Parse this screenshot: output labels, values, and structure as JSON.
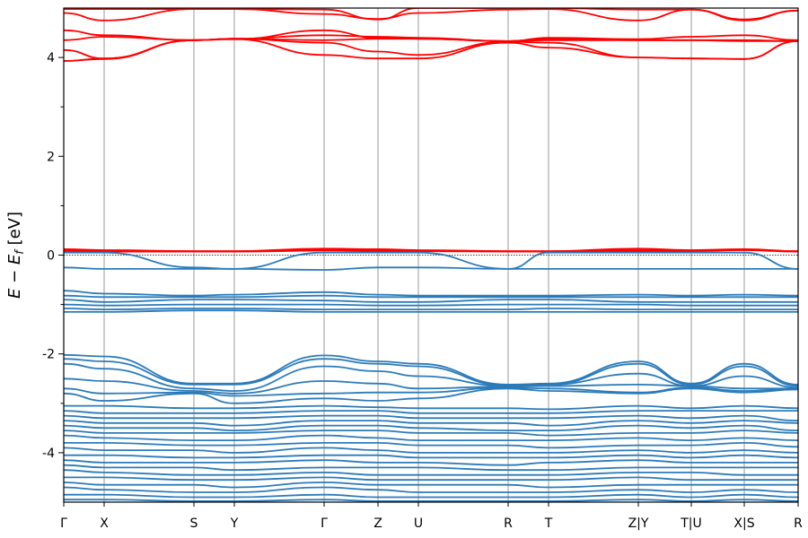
{
  "chart_data": {
    "type": "line",
    "title": "",
    "xlabel": "",
    "ylabel": "E − E_f [eV]",
    "ylabel_parts": {
      "main": "E − E",
      "sub": "f",
      "unit": " [eV]"
    },
    "ylim": [
      -5,
      5
    ],
    "yticks": [
      {
        "value": 4,
        "label": "4"
      },
      {
        "value": 2,
        "label": "2"
      },
      {
        "value": 0,
        "label": "0"
      },
      {
        "value": -2,
        "label": "-2"
      },
      {
        "value": -4,
        "label": "-4"
      }
    ],
    "yminor_ticks": [
      3,
      1,
      -1,
      -3
    ],
    "kpoint_labels": [
      "Γ",
      "X",
      "S",
      "Y",
      "Γ",
      "Z",
      "U",
      "R",
      "T",
      "Z|Y",
      "T|U",
      "X|S",
      "R"
    ],
    "kpoint_positions": [
      0,
      0.45,
      1.45,
      1.9,
      2.9,
      3.5,
      3.95,
      4.95,
      5.4,
      6.4,
      6.99,
      7.58,
      8.18
    ],
    "xlim": [
      0,
      8.18
    ],
    "fermi_level": 0,
    "colors": {
      "conduction": "#ff0000",
      "valence": "#2b7bba",
      "kline": "#555555",
      "fermi": "#000000"
    },
    "series": [
      {
        "band": "conduction",
        "y": [
          4.98,
          4.98,
          4.98,
          4.98,
          4.97,
          4.77,
          5.0,
          5.0,
          5.0,
          4.97,
          4.97,
          4.77,
          4.95
        ]
      },
      {
        "band": "conduction",
        "y": [
          4.9,
          4.75,
          4.98,
          4.98,
          4.88,
          4.78,
          4.9,
          4.97,
          4.98,
          4.75,
          4.97,
          4.75,
          4.95
        ]
      },
      {
        "band": "conduction",
        "y": [
          4.55,
          4.45,
          4.35,
          4.37,
          4.55,
          4.4,
          4.38,
          4.33,
          4.4,
          4.37,
          4.42,
          4.45,
          4.35
        ]
      },
      {
        "band": "conduction",
        "y": [
          4.35,
          4.42,
          4.35,
          4.38,
          4.45,
          4.42,
          4.4,
          4.33,
          4.38,
          4.35,
          4.35,
          4.35,
          4.33
        ]
      },
      {
        "band": "conduction",
        "y": [
          4.15,
          3.98,
          4.35,
          4.38,
          4.35,
          4.38,
          4.38,
          4.33,
          4.35,
          4.35,
          4.35,
          4.33,
          4.33
        ]
      },
      {
        "band": "conduction",
        "y": [
          3.93,
          3.98,
          4.35,
          4.38,
          4.3,
          4.12,
          4.05,
          4.32,
          4.3,
          4.0,
          3.98,
          3.97,
          4.33
        ]
      },
      {
        "band": "conduction",
        "y": [
          3.93,
          3.97,
          4.35,
          4.37,
          4.05,
          3.98,
          3.98,
          4.3,
          4.2,
          4.0,
          3.98,
          3.97,
          4.33
        ]
      },
      {
        "band": "conduction",
        "y": [
          0.12,
          0.1,
          0.08,
          0.08,
          0.13,
          0.12,
          0.1,
          0.08,
          0.08,
          0.13,
          0.1,
          0.12,
          0.08
        ]
      },
      {
        "band": "conduction",
        "y": [
          0.1,
          0.08,
          0.08,
          0.08,
          0.11,
          0.1,
          0.09,
          0.08,
          0.08,
          0.1,
          0.09,
          0.11,
          0.08
        ]
      },
      {
        "band": "conduction",
        "y": [
          0.08,
          0.07,
          0.07,
          0.07,
          0.09,
          0.08,
          0.08,
          0.07,
          0.07,
          0.08,
          0.08,
          0.1,
          0.07
        ]
      },
      {
        "band": "valence",
        "y": [
          0.05,
          0.05,
          -0.25,
          -0.28,
          0.05,
          0.05,
          0.05,
          -0.28,
          0.05,
          0.05,
          0.05,
          0.05,
          -0.28
        ]
      },
      {
        "band": "valence",
        "y": [
          -0.25,
          -0.28,
          -0.28,
          -0.28,
          -0.3,
          -0.25,
          -0.25,
          -0.28,
          -0.28,
          -0.28,
          -0.28,
          -0.28,
          -0.28
        ]
      },
      {
        "band": "valence",
        "y": [
          -0.72,
          -0.78,
          -0.82,
          -0.8,
          -0.75,
          -0.8,
          -0.82,
          -0.82,
          -0.82,
          -0.8,
          -0.82,
          -0.8,
          -0.82
        ]
      },
      {
        "band": "valence",
        "y": [
          -0.82,
          -0.85,
          -0.85,
          -0.85,
          -0.82,
          -0.85,
          -0.85,
          -0.85,
          -0.85,
          -0.85,
          -0.85,
          -0.85,
          -0.85
        ]
      },
      {
        "band": "valence",
        "y": [
          -0.9,
          -0.95,
          -0.9,
          -0.9,
          -0.92,
          -0.95,
          -0.95,
          -0.9,
          -0.9,
          -0.95,
          -0.95,
          -0.95,
          -0.95
        ]
      },
      {
        "band": "valence",
        "y": [
          -1.0,
          -1.02,
          -1.0,
          -1.0,
          -1.0,
          -1.02,
          -1.02,
          -1.0,
          -1.0,
          -1.0,
          -1.02,
          -1.02,
          -1.02
        ]
      },
      {
        "band": "valence",
        "y": [
          -1.08,
          -1.1,
          -1.08,
          -1.08,
          -1.1,
          -1.1,
          -1.1,
          -1.1,
          -1.08,
          -1.1,
          -1.1,
          -1.1,
          -1.1
        ]
      },
      {
        "band": "valence",
        "y": [
          -1.15,
          -1.15,
          -1.12,
          -1.12,
          -1.15,
          -1.15,
          -1.15,
          -1.15,
          -1.15,
          -1.15,
          -1.15,
          -1.15,
          -1.15
        ]
      },
      {
        "band": "valence",
        "y": [
          -2.02,
          -2.05,
          -2.6,
          -2.6,
          -2.03,
          -2.15,
          -2.2,
          -2.62,
          -2.6,
          -2.15,
          -2.6,
          -2.2,
          -2.62
        ]
      },
      {
        "band": "valence",
        "y": [
          -2.1,
          -2.15,
          -2.62,
          -2.62,
          -2.1,
          -2.2,
          -2.25,
          -2.64,
          -2.62,
          -2.2,
          -2.62,
          -2.25,
          -2.65
        ]
      },
      {
        "band": "valence",
        "y": [
          -2.2,
          -2.3,
          -2.7,
          -2.75,
          -2.25,
          -2.35,
          -2.45,
          -2.65,
          -2.62,
          -2.4,
          -2.65,
          -2.45,
          -2.68
        ]
      },
      {
        "band": "valence",
        "y": [
          -2.5,
          -2.55,
          -2.75,
          -2.8,
          -2.55,
          -2.6,
          -2.7,
          -2.66,
          -2.65,
          -2.62,
          -2.65,
          -2.7,
          -2.7
        ]
      },
      {
        "band": "valence",
        "y": [
          -2.7,
          -2.8,
          -2.78,
          -2.85,
          -2.8,
          -2.78,
          -2.78,
          -2.68,
          -2.7,
          -2.78,
          -2.68,
          -2.75,
          -2.7
        ]
      },
      {
        "band": "valence",
        "y": [
          -2.8,
          -2.95,
          -2.8,
          -3.0,
          -2.9,
          -2.95,
          -2.9,
          -2.7,
          -2.75,
          -2.8,
          -2.7,
          -2.78,
          -2.72
        ]
      },
      {
        "band": "valence",
        "y": [
          -3.05,
          -3.05,
          -3.1,
          -3.1,
          -3.05,
          -3.08,
          -3.1,
          -3.1,
          -3.12,
          -3.05,
          -3.1,
          -3.05,
          -3.1
        ]
      },
      {
        "band": "valence",
        "y": [
          -3.15,
          -3.2,
          -3.2,
          -3.2,
          -3.15,
          -3.15,
          -3.2,
          -3.2,
          -3.2,
          -3.15,
          -3.15,
          -3.15,
          -3.15
        ]
      },
      {
        "band": "valence",
        "y": [
          -3.25,
          -3.3,
          -3.3,
          -3.3,
          -3.25,
          -3.25,
          -3.3,
          -3.3,
          -3.3,
          -3.25,
          -3.3,
          -3.25,
          -3.35
        ]
      },
      {
        "band": "valence",
        "y": [
          -3.35,
          -3.4,
          -3.4,
          -3.45,
          -3.35,
          -3.35,
          -3.4,
          -3.4,
          -3.45,
          -3.35,
          -3.4,
          -3.35,
          -3.4
        ]
      },
      {
        "band": "valence",
        "y": [
          -3.45,
          -3.5,
          -3.5,
          -3.55,
          -3.45,
          -3.45,
          -3.5,
          -3.55,
          -3.55,
          -3.45,
          -3.5,
          -3.45,
          -3.55
        ]
      },
      {
        "band": "valence",
        "y": [
          -3.55,
          -3.6,
          -3.6,
          -3.6,
          -3.55,
          -3.55,
          -3.6,
          -3.6,
          -3.65,
          -3.6,
          -3.6,
          -3.55,
          -3.6
        ]
      },
      {
        "band": "valence",
        "y": [
          -3.65,
          -3.7,
          -3.75,
          -3.75,
          -3.65,
          -3.7,
          -3.75,
          -3.75,
          -3.75,
          -3.7,
          -3.75,
          -3.7,
          -3.75
        ]
      },
      {
        "band": "valence",
        "y": [
          -3.8,
          -3.8,
          -3.85,
          -3.85,
          -3.8,
          -3.8,
          -3.85,
          -3.85,
          -3.9,
          -3.85,
          -3.85,
          -3.8,
          -3.88
        ]
      },
      {
        "band": "valence",
        "y": [
          -3.9,
          -3.95,
          -3.95,
          -4.0,
          -3.9,
          -3.95,
          -4.0,
          -4.0,
          -4.0,
          -3.95,
          -4.0,
          -3.95,
          -4.0
        ]
      },
      {
        "band": "valence",
        "y": [
          -4.05,
          -4.05,
          -4.1,
          -4.1,
          -4.05,
          -4.05,
          -4.1,
          -4.1,
          -4.1,
          -4.05,
          -4.1,
          -4.05,
          -4.1
        ]
      },
      {
        "band": "valence",
        "y": [
          -4.15,
          -4.2,
          -4.2,
          -4.2,
          -4.15,
          -4.2,
          -4.2,
          -4.25,
          -4.2,
          -4.15,
          -4.2,
          -4.2,
          -4.2
        ]
      },
      {
        "band": "valence",
        "y": [
          -4.25,
          -4.3,
          -4.3,
          -4.35,
          -4.3,
          -4.3,
          -4.3,
          -4.35,
          -4.35,
          -4.3,
          -4.3,
          -4.3,
          -4.3
        ]
      },
      {
        "band": "valence",
        "y": [
          -4.35,
          -4.4,
          -4.45,
          -4.45,
          -4.4,
          -4.45,
          -4.45,
          -4.45,
          -4.45,
          -4.4,
          -4.4,
          -4.45,
          -4.45
        ]
      },
      {
        "band": "valence",
        "y": [
          -4.5,
          -4.5,
          -4.55,
          -4.55,
          -4.5,
          -4.55,
          -4.55,
          -4.55,
          -4.55,
          -4.5,
          -4.55,
          -4.55,
          -4.55
        ]
      },
      {
        "band": "valence",
        "y": [
          -4.6,
          -4.65,
          -4.65,
          -4.7,
          -4.6,
          -4.65,
          -4.65,
          -4.65,
          -4.7,
          -4.65,
          -4.65,
          -4.65,
          -4.65
        ]
      },
      {
        "band": "valence",
        "y": [
          -4.7,
          -4.75,
          -4.8,
          -4.8,
          -4.7,
          -4.75,
          -4.8,
          -4.8,
          -4.8,
          -4.75,
          -4.8,
          -4.75,
          -4.8
        ]
      },
      {
        "band": "valence",
        "y": [
          -4.85,
          -4.85,
          -4.9,
          -4.9,
          -4.85,
          -4.9,
          -4.9,
          -4.9,
          -4.9,
          -4.85,
          -4.9,
          -4.85,
          -4.9
        ]
      },
      {
        "band": "valence",
        "y": [
          -4.95,
          -4.95,
          -4.98,
          -4.98,
          -4.95,
          -4.98,
          -4.98,
          -4.98,
          -4.98,
          -4.95,
          -4.98,
          -4.95,
          -4.98
        ]
      }
    ]
  }
}
